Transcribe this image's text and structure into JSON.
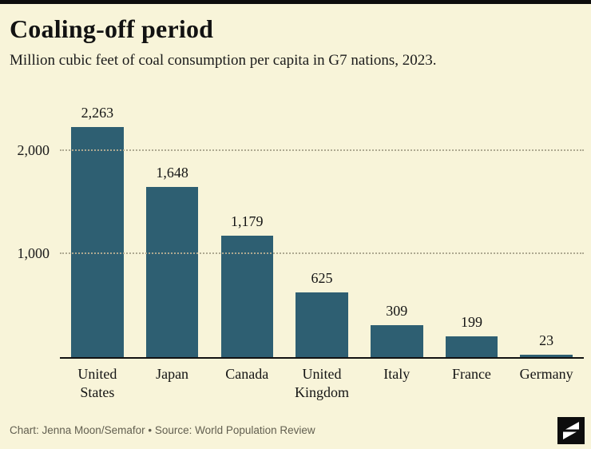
{
  "title": "Coaling-off period",
  "subtitle": "Million cubic feet of coal consumption per capita in G7 nations, 2023.",
  "footer": {
    "credit": "Chart: Jenna Moon/Semafor • Source: World Population Review",
    "logo": "semafor-logo"
  },
  "colors": {
    "background": "#f8f4d9",
    "bar": "#2e5f72",
    "grid": "#aea991",
    "axis": "#121212",
    "text": "#141414",
    "footer_text": "#625f50",
    "top_accent": "#0d0d0d"
  },
  "chart_data": {
    "type": "bar",
    "categories": [
      "United States",
      "Japan",
      "Canada",
      "United Kingdom",
      "Italy",
      "France",
      "Germany"
    ],
    "values": [
      2263,
      1648,
      1179,
      625,
      309,
      199,
      23
    ],
    "value_labels": [
      "2,263",
      "1,648",
      "1,179",
      "625",
      "309",
      "199",
      "23"
    ],
    "title": "Coaling-off period",
    "xlabel": "",
    "ylabel": "",
    "ylim": [
      0,
      2450
    ],
    "yticks": [
      {
        "value": 2000,
        "label": "2,000"
      },
      {
        "value": 1000,
        "label": "1,000"
      }
    ],
    "grid": "dotted-horizontal",
    "legend": "none"
  }
}
